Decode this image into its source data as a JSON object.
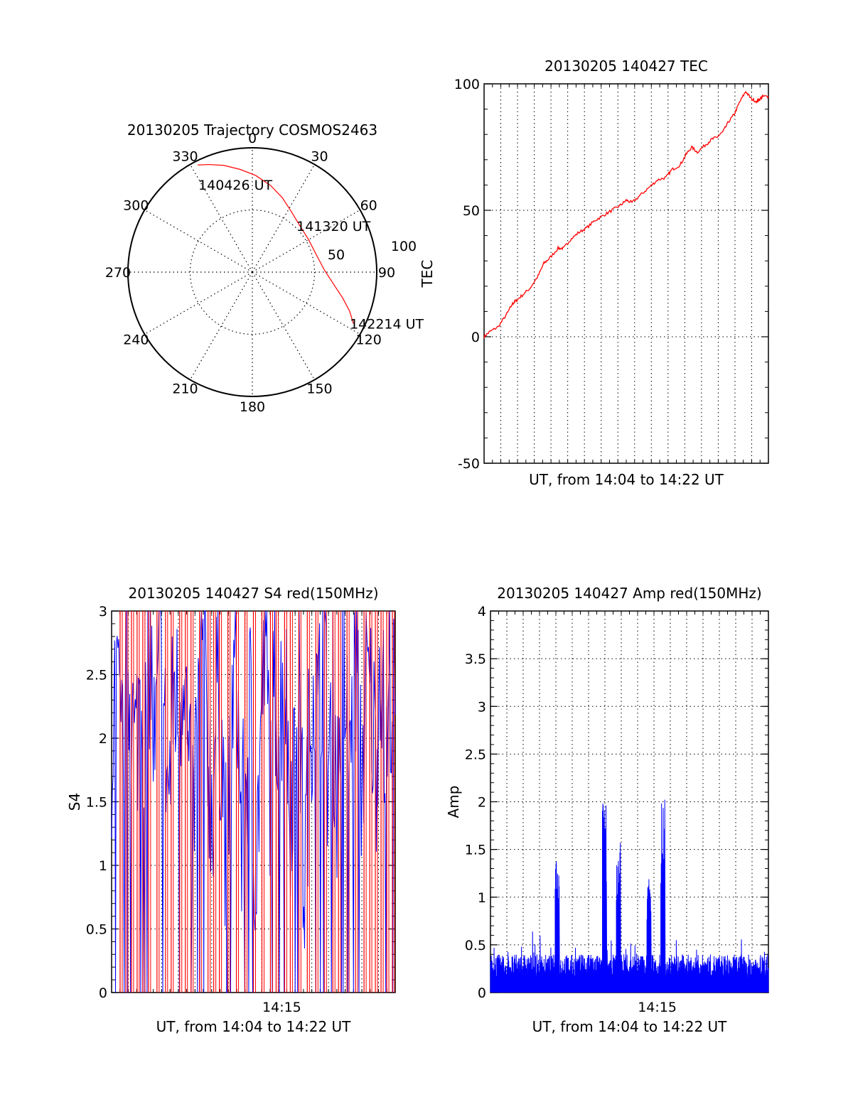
{
  "chart_data": [
    {
      "id": "trajectory",
      "type": "polar",
      "title": "20130205 Trajectory COSMOS2463",
      "angle_labels": [
        "0",
        "30",
        "60",
        "90",
        "120",
        "150",
        "180",
        "210",
        "240",
        "270",
        "300",
        "330"
      ],
      "radius_labels": [
        "50",
        "100"
      ],
      "annotations": [
        {
          "text": "140426 UT",
          "az": 330,
          "zen": 73
        },
        {
          "text": "141320 UT",
          "az": 46,
          "zen": 48
        },
        {
          "text": "142214 UT",
          "az": 117,
          "zen": 82
        }
      ],
      "series": [
        {
          "color": "#ff0000",
          "points": [
            [
              333,
              87
            ],
            [
              338,
              84
            ],
            [
              345,
              80
            ],
            [
              353,
              75
            ],
            [
              2,
              70
            ],
            [
              12,
              64
            ],
            [
              22,
              58
            ],
            [
              33,
              52
            ],
            [
              46,
              48
            ],
            [
              60,
              47
            ],
            [
              75,
              48
            ],
            [
              88,
              52
            ],
            [
              98,
              59
            ],
            [
              106,
              68
            ],
            [
              112,
              76
            ],
            [
              117,
              82
            ]
          ]
        }
      ]
    },
    {
      "id": "tec",
      "type": "line",
      "title": "20130205 140427 TEC",
      "xlabel": "UT, from 14:04 to 14:22 UT",
      "ylabel": "TEC",
      "ylim": [
        -50,
        100
      ],
      "yticks": [
        "-50",
        "0",
        "50",
        "100"
      ],
      "xlim": [
        0,
        1
      ],
      "grid": true,
      "series": [
        {
          "color": "#ff0000",
          "x": [
            0,
            0.02,
            0.05,
            0.08,
            0.1,
            0.11,
            0.13,
            0.16,
            0.19,
            0.21,
            0.23,
            0.26,
            0.28,
            0.3,
            0.33,
            0.36,
            0.39,
            0.42,
            0.45,
            0.48,
            0.5,
            0.52,
            0.55,
            0.58,
            0.61,
            0.64,
            0.66,
            0.69,
            0.71,
            0.73,
            0.75,
            0.78,
            0.8,
            0.82,
            0.84,
            0.86,
            0.88,
            0.9,
            0.92,
            0.94,
            0.96,
            0.97,
            0.98,
            1.0
          ],
          "y": [
            0,
            2,
            4,
            9,
            13,
            14,
            16,
            19,
            24,
            29,
            31,
            35,
            35,
            38,
            41,
            43,
            46,
            48,
            50,
            52,
            54,
            53,
            56,
            59,
            62,
            63,
            66,
            68,
            72,
            75,
            73,
            76,
            78,
            79,
            81,
            85,
            88,
            93,
            97,
            94,
            93,
            94,
            95,
            95
          ]
        }
      ]
    },
    {
      "id": "s4",
      "type": "line",
      "title": "20130205 140427 S4 red(150MHz)",
      "xlabel": "UT, from 14:04 to 14:22 UT",
      "ylabel": "S4",
      "ylim": [
        0,
        3
      ],
      "yticks": [
        "0",
        "0.5",
        "1",
        "1.5",
        "2",
        "2.5",
        "3"
      ],
      "xtick_labels": [
        "14:15"
      ],
      "grid": true,
      "series": [
        {
          "name": "",
          "color": "#ff0000",
          "spike_x": [
            0.03,
            0.05,
            0.07,
            0.09,
            0.11,
            0.13,
            0.16,
            0.19,
            0.21,
            0.24,
            0.26,
            0.28,
            0.31,
            0.34,
            0.36,
            0.38,
            0.41,
            0.44,
            0.47,
            0.5,
            0.53,
            0.56,
            0.58,
            0.61,
            0.63,
            0.66,
            0.69,
            0.72,
            0.75,
            0.78,
            0.8,
            0.83,
            0.86,
            0.89,
            0.91,
            0.93,
            0.95,
            0.97,
            0.99
          ]
        },
        {
          "name": "",
          "color": "#0000ff",
          "y": [
            1.7,
            2.2,
            1.5,
            2.6,
            2.0,
            1.6,
            2.3,
            1.9,
            2.5,
            1.5,
            2.4,
            1.8,
            1.3,
            2.2,
            1.9,
            2.6,
            1.4,
            1.1,
            2.0,
            2.5,
            1.7,
            1.2,
            2.3,
            1.6,
            0.7,
            1.9,
            2.4,
            0.9,
            1.5,
            2.1,
            0.6,
            1.8,
            2.6,
            1.4,
            2.2,
            1.9,
            2.5,
            1.2,
            1.7,
            2.4,
            0.5,
            1.6,
            2.3,
            1.8,
            2.6,
            1.5,
            2.1,
            1.3,
            2.4,
            1.9,
            1.7,
            2.5,
            1.4,
            2.2,
            2.0,
            1.6,
            2.6,
            1.3,
            2.3,
            1.8
          ]
        }
      ]
    },
    {
      "id": "amp",
      "type": "line",
      "title": "20130205 140427 Amp red(150MHz)",
      "xlabel": "UT, from 14:04 to 14:22 UT",
      "ylabel": "Amp",
      "ylim": [
        0,
        4
      ],
      "yticks": [
        "0",
        "0.5",
        "1",
        "1.5",
        "2",
        "2.5",
        "3",
        "3.5",
        "4"
      ],
      "xtick_labels": [
        "14:15"
      ],
      "grid": true,
      "series": [
        {
          "color": "#0000ff",
          "peaks": [
            {
              "x": 0.24,
              "y": 1.5
            },
            {
              "x": 0.41,
              "y": 2.0
            },
            {
              "x": 0.46,
              "y": 1.65
            },
            {
              "x": 0.57,
              "y": 1.25
            },
            {
              "x": 0.62,
              "y": 2.05
            }
          ],
          "baseline": 0.4
        }
      ]
    }
  ]
}
